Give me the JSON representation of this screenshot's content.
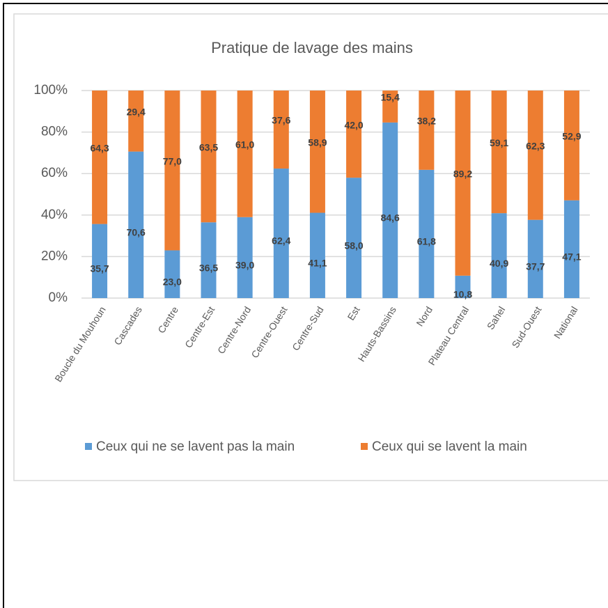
{
  "chart_data": {
    "type": "bar",
    "stacked": true,
    "title": "Pratique de lavage des mains",
    "categories": [
      "Boucle du Mouhoun",
      "Cascades",
      "Centre",
      "Centre-Est",
      "Centre-Nord",
      "Centre-Ouest",
      "Centre-Sud",
      "Est",
      "Hauts-Bassins",
      "Nord",
      "Plateau Central",
      "Sahel",
      "Sud-Ouest",
      "National"
    ],
    "series": [
      {
        "name": "Ceux qui ne se lavent pas la main",
        "color": "#5b9bd5",
        "values": [
          35.7,
          70.6,
          23.0,
          36.5,
          39.0,
          62.4,
          41.1,
          58.0,
          84.6,
          61.8,
          10.8,
          40.9,
          37.7,
          47.1
        ],
        "value_labels": [
          "35,7",
          "70,6",
          "23,0",
          "36,5",
          "39,0",
          "62,4",
          "41,1",
          "58,0",
          "84,6",
          "61,8",
          "10,8",
          "40,9",
          "37,7",
          "47,1"
        ]
      },
      {
        "name": "Ceux qui se lavent la main",
        "color": "#ed7d31",
        "values": [
          64.3,
          29.4,
          77.0,
          63.5,
          61.0,
          37.6,
          58.9,
          42.0,
          15.4,
          38.2,
          89.2,
          59.1,
          62.3,
          52.9
        ],
        "value_labels": [
          "64,3",
          "29,4",
          "77,0",
          "63,5",
          "61,0",
          "37,6",
          "58,9",
          "42,0",
          "15,4",
          "38,2",
          "89,2",
          "59,1",
          "62,3",
          "52,9"
        ]
      }
    ],
    "ylim": [
      0,
      100
    ],
    "yticks": [
      {
        "value": 0,
        "label": "0%"
      },
      {
        "value": 20,
        "label": "20%"
      },
      {
        "value": 40,
        "label": "40%"
      },
      {
        "value": 60,
        "label": "60%"
      },
      {
        "value": 80,
        "label": "80%"
      },
      {
        "value": 100,
        "label": "100%"
      }
    ],
    "grid": true,
    "legend": "bottom"
  }
}
